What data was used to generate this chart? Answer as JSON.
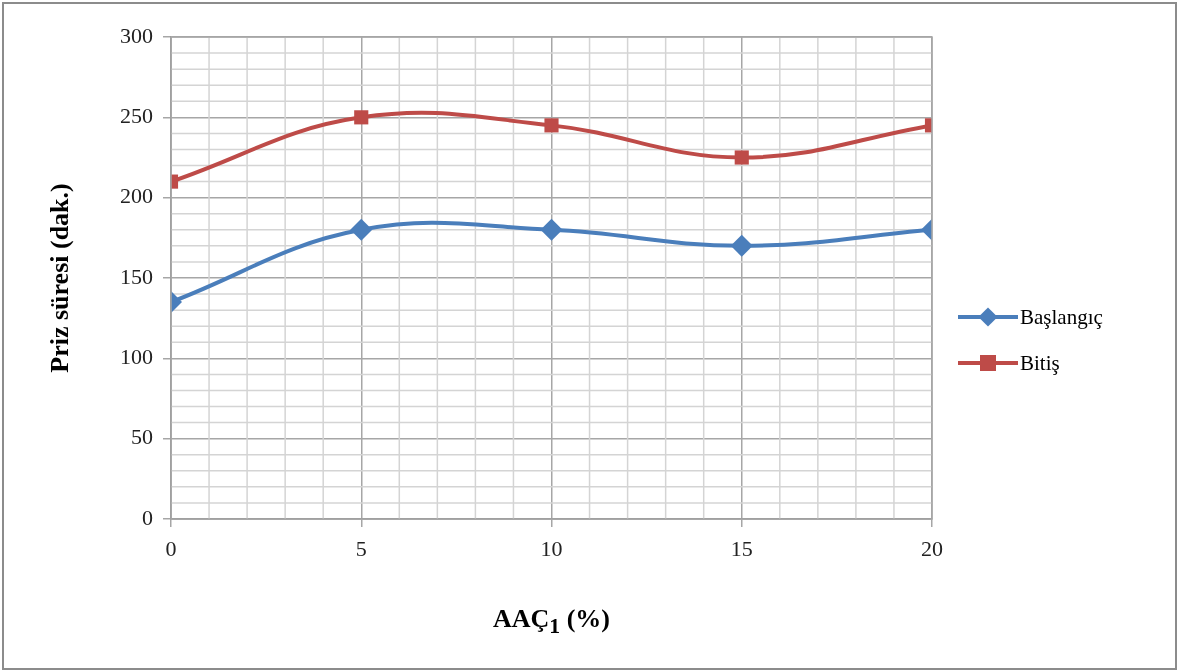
{
  "chart_data": {
    "type": "line",
    "xlabel": "AAÇ$_{1}$ (%)",
    "ylabel": "Priz süresi (dak.)",
    "x": [
      0,
      5,
      10,
      15,
      20
    ],
    "series": [
      {
        "name": "Başlangıç",
        "color": "#4a7ebb",
        "marker": "diamond",
        "values": [
          135,
          180,
          180,
          170,
          180
        ]
      },
      {
        "name": "Bitiş",
        "color": "#be4b48",
        "marker": "square",
        "values": [
          210,
          250,
          245,
          225,
          245
        ]
      }
    ],
    "xlim": [
      0,
      20
    ],
    "xticks": [
      0,
      5,
      10,
      15,
      20
    ],
    "ylim": [
      0,
      300
    ],
    "yticks": [
      0,
      50,
      100,
      150,
      200,
      250,
      300
    ],
    "grid": true,
    "legend": "right",
    "line_style": "solid"
  }
}
